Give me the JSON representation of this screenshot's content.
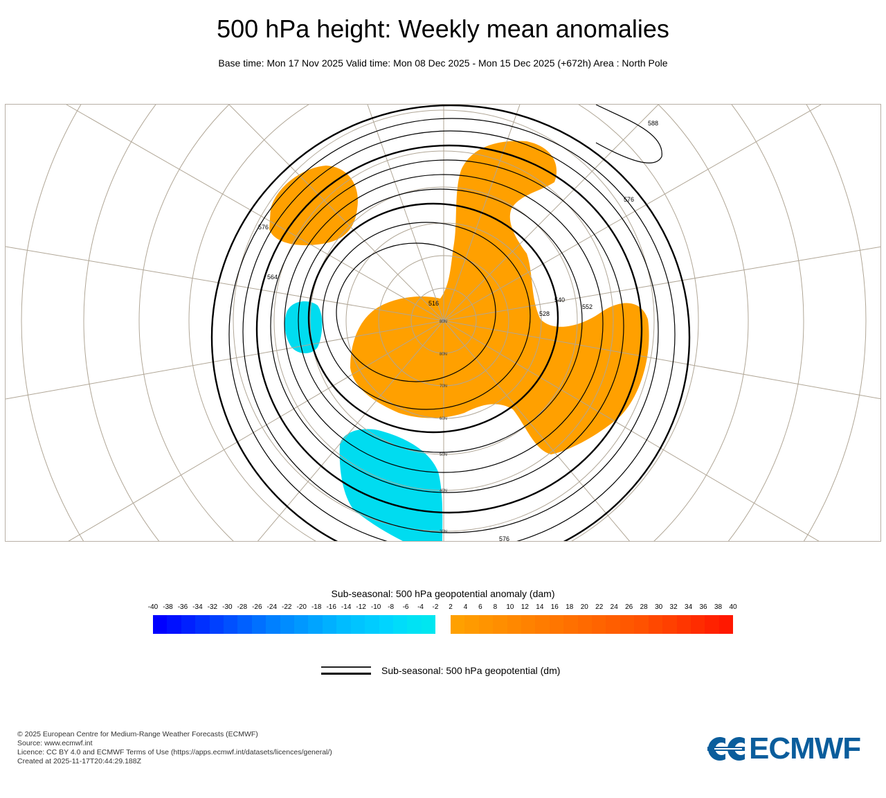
{
  "header": {
    "title": "500 hPa height: Weekly mean anomalies",
    "subtitle": "Base time: Mon 17 Nov 2025 Valid time: Mon 08 Dec 2025 - Mon 15 Dec 2025 (+672h) Area : North Pole"
  },
  "map": {
    "projection": "polar stereographic (North Pole)",
    "latitude_labels": [
      "80N",
      "80N",
      "70N",
      "60N",
      "50N",
      "40N",
      "30N"
    ],
    "contour_labels": [
      "516",
      "528",
      "540",
      "552",
      "564",
      "576",
      "576",
      "576",
      "588"
    ],
    "colors": {
      "positive_anomaly": "#ffa000",
      "negative_anomaly": "#00dcf0",
      "graticule": "#b0a696",
      "contour": "#000000",
      "coastline": "#222222"
    }
  },
  "colorbar": {
    "title": "Sub-seasonal: 500 hPa geopotential anomaly (dam)",
    "negative_ticks": [
      "-40",
      "-38",
      "-36",
      "-34",
      "-32",
      "-30",
      "-28",
      "-26",
      "-24",
      "-22",
      "-20",
      "-18",
      "-16",
      "-14",
      "-12",
      "-10",
      "-8",
      "-6",
      "-4",
      "-2"
    ],
    "positive_ticks": [
      "2",
      "4",
      "6",
      "8",
      "10",
      "12",
      "14",
      "16",
      "18",
      "20",
      "22",
      "24",
      "26",
      "28",
      "30",
      "32",
      "34",
      "36",
      "38",
      "40"
    ],
    "negative_colors": [
      "#0000ff",
      "#0010ff",
      "#0020ff",
      "#0030ff",
      "#0040ff",
      "#0050ff",
      "#0060ff",
      "#0070ff",
      "#0080ff",
      "#008cff",
      "#0098ff",
      "#00a4ff",
      "#00b0ff",
      "#00bcff",
      "#00c4ff",
      "#00ccff",
      "#00d4ff",
      "#00dcfa",
      "#00e2f4",
      "#00e6f0"
    ],
    "positive_colors": [
      "#ffa000",
      "#ff9a00",
      "#ff9400",
      "#ff8e00",
      "#ff8800",
      "#ff8200",
      "#ff7c00",
      "#ff7600",
      "#ff7000",
      "#ff6a00",
      "#ff6400",
      "#ff5e00",
      "#ff5800",
      "#ff5200",
      "#ff4800",
      "#ff4000",
      "#ff3600",
      "#ff2c00",
      "#ff2200",
      "#ff1800"
    ]
  },
  "legend": {
    "contour_label": "Sub-seasonal: 500 hPa geopotential (dm)"
  },
  "footer": {
    "lines": [
      "© 2025 European Centre for Medium-Range Weather Forecasts (ECMWF)",
      "Source: www.ecmwf.int",
      "Licence: CC BY 4.0 and ECMWF Terms of Use (https://apps.ecmwf.int/datasets/licences/general/)",
      "Created at 2025-11-17T20:44:29.188Z"
    ]
  },
  "logo": {
    "text": "ECMWF",
    "color": "#0a5d9c"
  }
}
